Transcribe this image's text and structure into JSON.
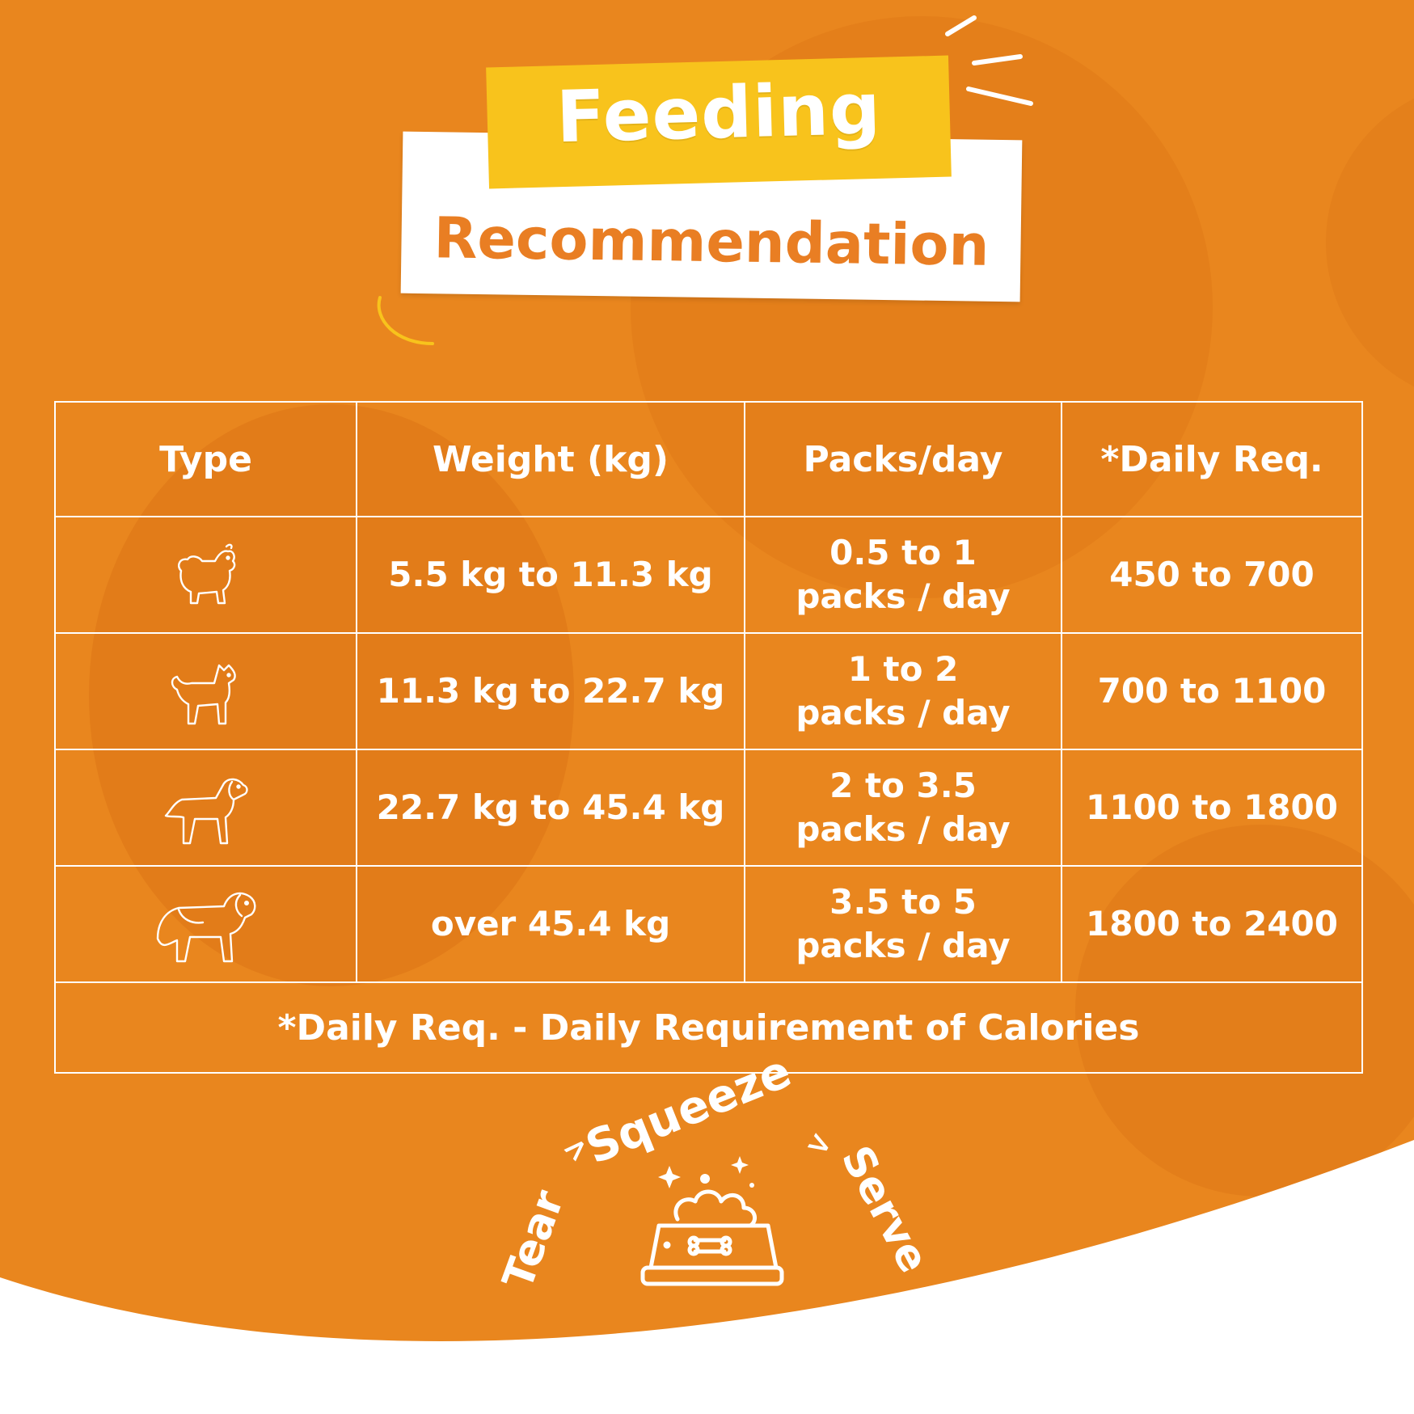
{
  "title": {
    "line1": "Feeding",
    "line2": "Recommendation"
  },
  "colors": {
    "background": "#E9861E",
    "accent_yellow": "#F8C31C",
    "title_orange": "#E97E23",
    "white": "#FFFFFF"
  },
  "table": {
    "headers": [
      "Type",
      "Weight (kg)",
      "Packs/day",
      "*Daily Req."
    ],
    "rows": [
      {
        "type_icon": "small-dog-icon",
        "weight": "5.5 kg to 11.3 kg",
        "packs_line1": "0.5 to 1",
        "packs_line2": "packs / day",
        "daily_req": "450 to 700"
      },
      {
        "type_icon": "medium-dog-icon",
        "weight": "11.3 kg to 22.7 kg",
        "packs_line1": "1 to 2",
        "packs_line2": "packs / day",
        "daily_req": "700 to 1100"
      },
      {
        "type_icon": "large-dog-icon",
        "weight": "22.7 kg to 45.4 kg",
        "packs_line1": "2 to 3.5",
        "packs_line2": "packs / day",
        "daily_req": "1100 to 1800"
      },
      {
        "type_icon": "giant-dog-icon",
        "weight": "over 45.4 kg",
        "packs_line1": "3.5 to 5",
        "packs_line2": "packs / day",
        "daily_req": "1800 to 2400"
      }
    ],
    "footnote": "*Daily Req. - Daily Requirement of Calories"
  },
  "steps": {
    "step1": "Tear",
    "step2": "Squeeze",
    "step3": "Serve",
    "separator": ">",
    "icon": "food-bowl-icon"
  }
}
